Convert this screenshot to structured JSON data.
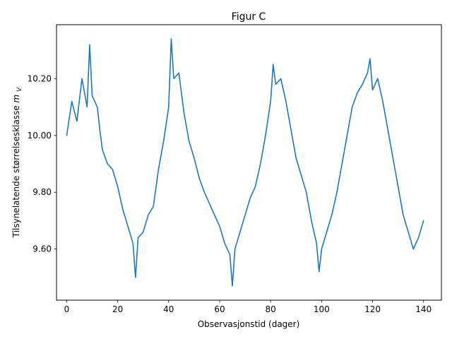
{
  "chart_data": {
    "type": "line",
    "title": "Figur C",
    "xlabel": "Observasjonstid (dager)",
    "ylabel": "Tilsynelatende størrelsesklasse",
    "ylabel_symbol": "m",
    "ylabel_subscript": "V",
    "xlim": [
      -4,
      147
    ],
    "ylim": [
      9.42,
      10.39
    ],
    "x_ticks": [
      0,
      20,
      40,
      60,
      80,
      100,
      120,
      140
    ],
    "x_tick_labels": [
      "0",
      "20",
      "40",
      "60",
      "80",
      "100",
      "120",
      "140"
    ],
    "y_ticks": [
      9.6,
      9.8,
      10.0,
      10.2
    ],
    "y_tick_labels": [
      "9.60",
      "9.80",
      "10.00",
      "10.20"
    ],
    "grid": false,
    "series": [
      {
        "color": "#1f77b4",
        "x": [
          0,
          2,
          4,
          6,
          8,
          9,
          10,
          12,
          13,
          14,
          16,
          18,
          20,
          22,
          24,
          26,
          27,
          28,
          30,
          32,
          34,
          36,
          38,
          40,
          41,
          42,
          44,
          46,
          48,
          50,
          52,
          54,
          56,
          58,
          60,
          62,
          64,
          65,
          66,
          68,
          70,
          72,
          74,
          76,
          78,
          80,
          81,
          82,
          84,
          86,
          88,
          90,
          92,
          94,
          96,
          98,
          99,
          100,
          102,
          104,
          106,
          108,
          110,
          112,
          114,
          116,
          118,
          119,
          120,
          122,
          124,
          126,
          128,
          130,
          132,
          134,
          136,
          138,
          140
        ],
        "y": [
          10.0,
          10.12,
          10.05,
          10.2,
          10.1,
          10.32,
          10.14,
          10.1,
          10.02,
          9.95,
          9.9,
          9.88,
          9.82,
          9.74,
          9.68,
          9.62,
          9.5,
          9.64,
          9.66,
          9.72,
          9.75,
          9.88,
          9.98,
          10.1,
          10.34,
          10.2,
          10.22,
          10.08,
          9.98,
          9.92,
          9.85,
          9.8,
          9.76,
          9.72,
          9.68,
          9.62,
          9.58,
          9.47,
          9.6,
          9.66,
          9.72,
          9.78,
          9.82,
          9.9,
          10.0,
          10.12,
          10.25,
          10.18,
          10.2,
          10.12,
          10.02,
          9.92,
          9.86,
          9.8,
          9.7,
          9.62,
          9.52,
          9.6,
          9.66,
          9.72,
          9.8,
          9.9,
          10.0,
          10.1,
          10.15,
          10.18,
          10.22,
          10.27,
          10.16,
          10.2,
          10.12,
          10.02,
          9.92,
          9.82,
          9.72,
          9.66,
          9.6,
          9.64,
          9.7
        ]
      }
    ]
  }
}
